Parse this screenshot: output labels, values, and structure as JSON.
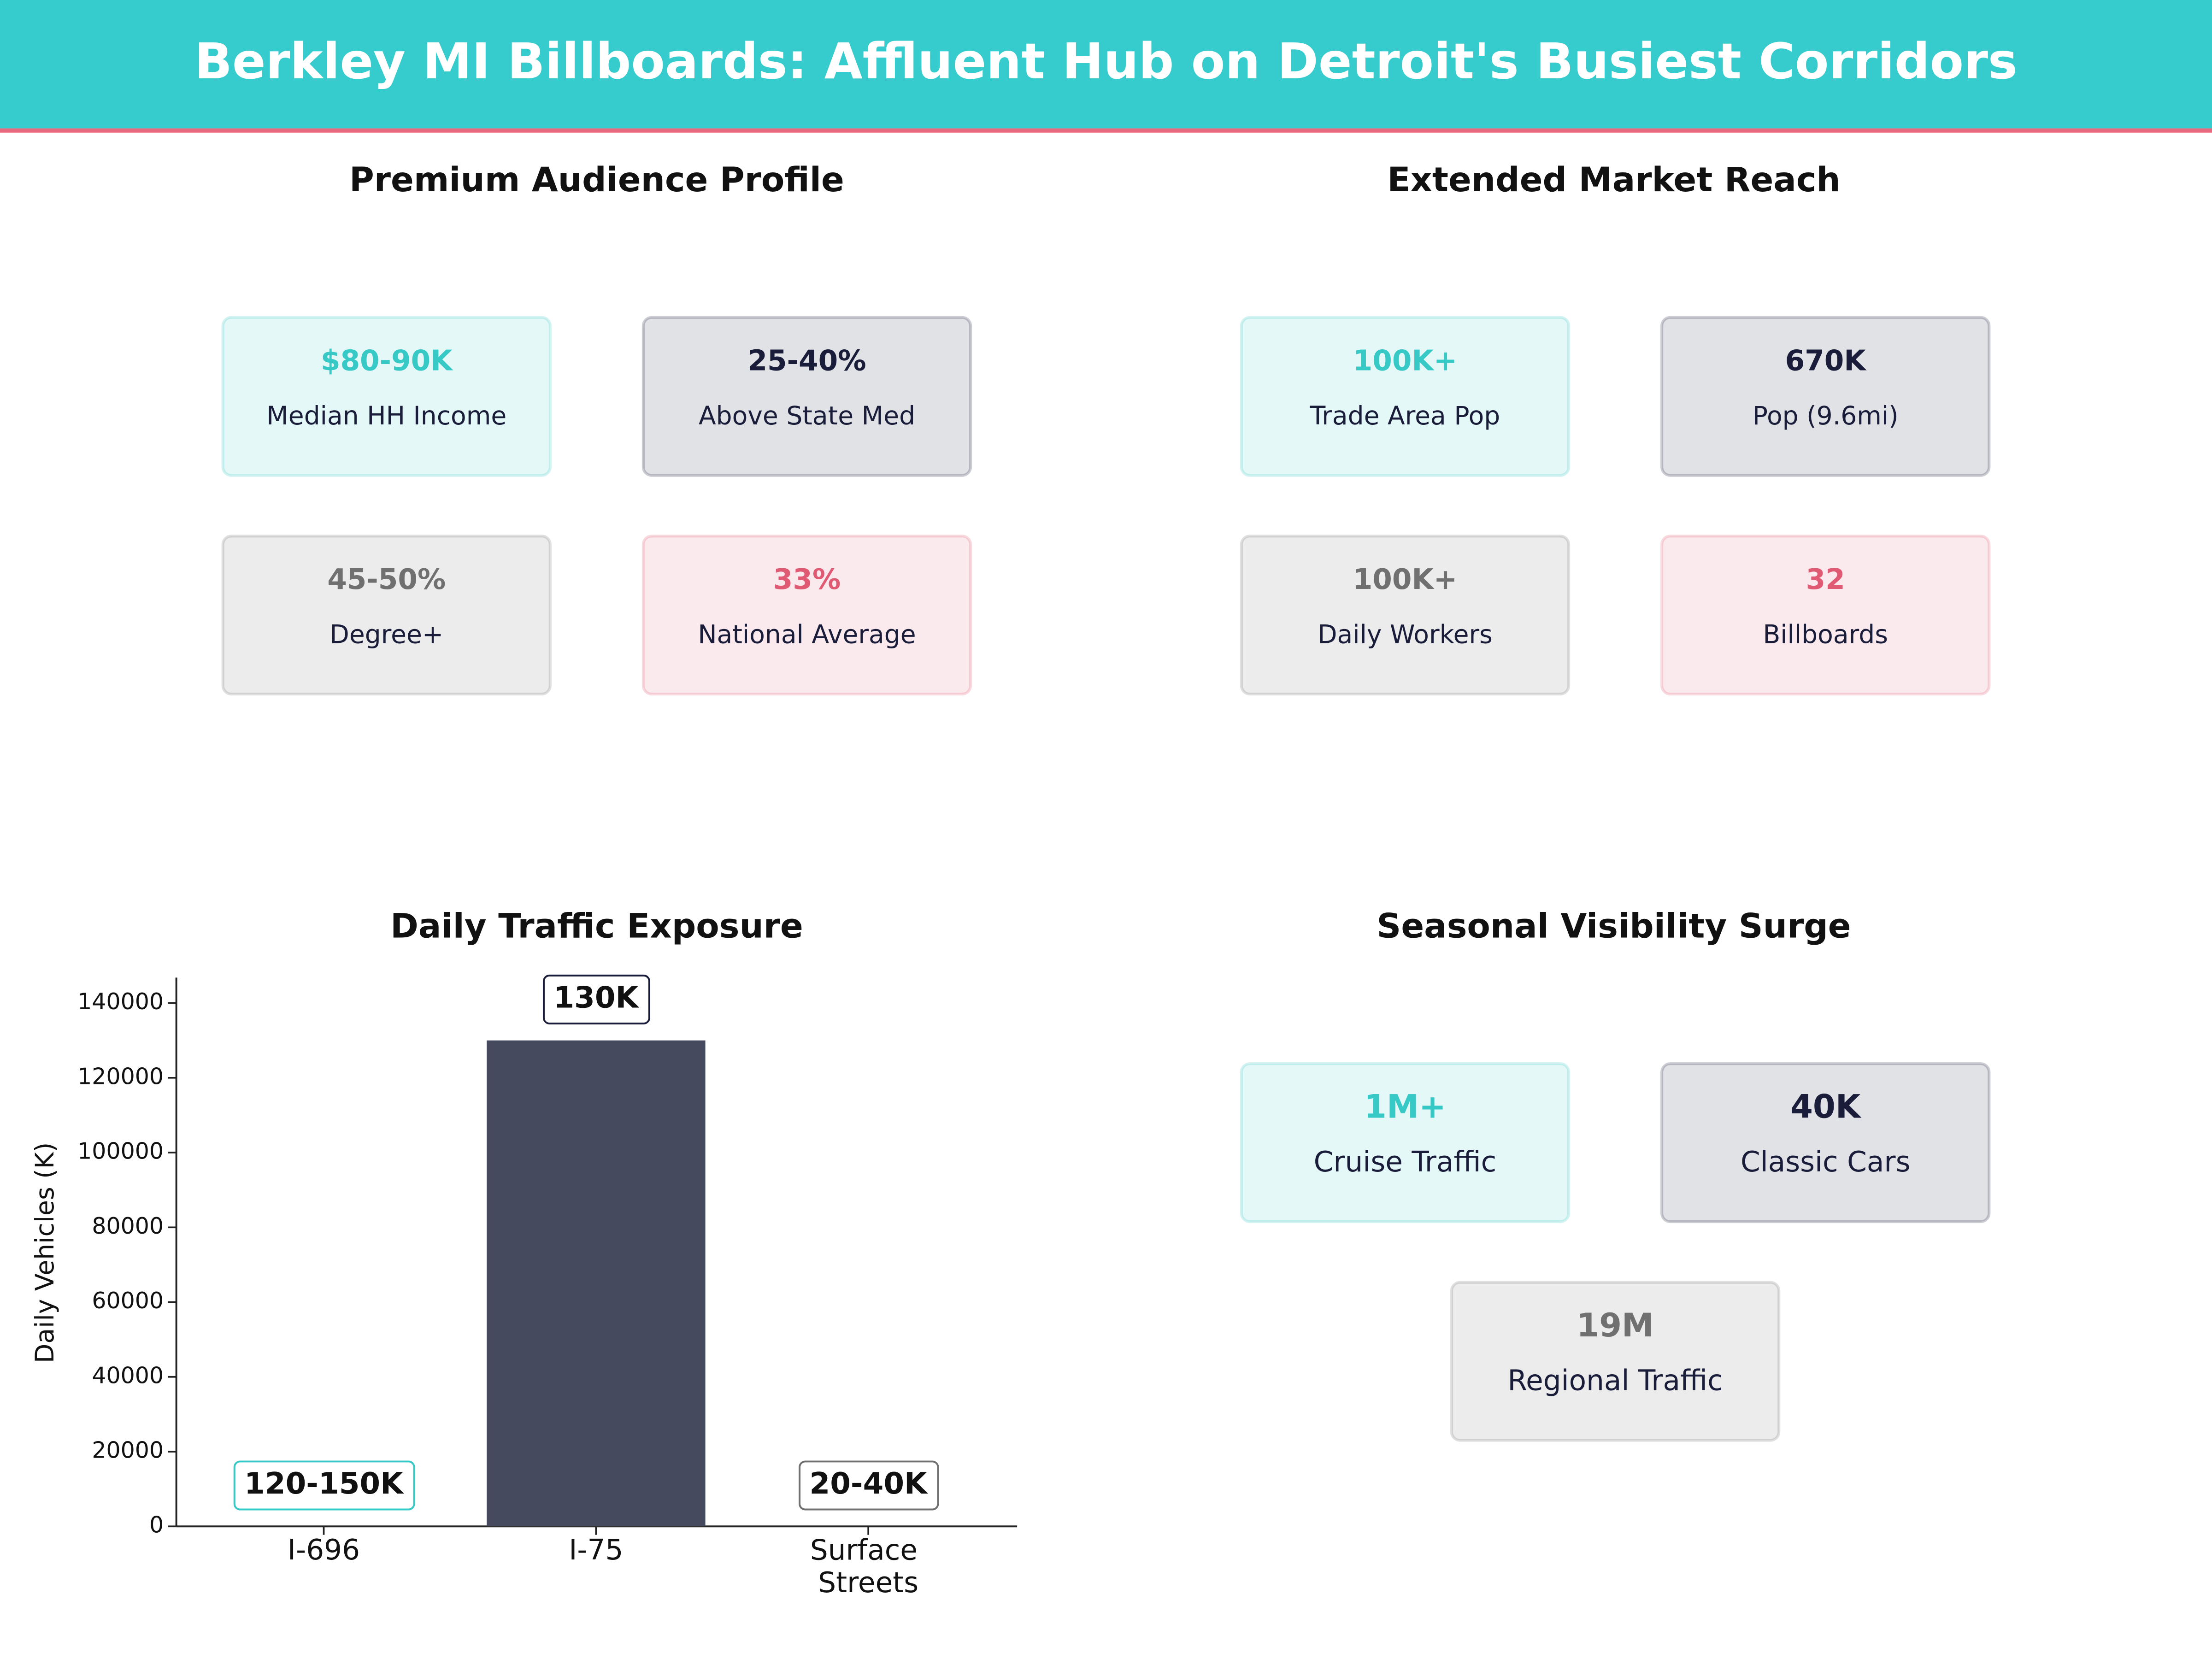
{
  "title": "Berkley MI Billboards: Affluent Hub on Detroit's Busiest Corridors",
  "panels": [
    {
      "title": "Premium Audience Profile",
      "cards": [
        {
          "value": "$80-90K",
          "label": "Median HH Income",
          "color": "#36c9c6"
        },
        {
          "value": "25-40%",
          "label": "Above State Med",
          "color": "#1a1d3a"
        },
        {
          "value": "45-50%",
          "label": "Degree+",
          "color": "#707070"
        },
        {
          "value": "33%",
          "label": "National Average",
          "color": "#e05a73"
        }
      ]
    },
    {
      "title": "Extended Market Reach",
      "cards": [
        {
          "value": "100K+",
          "label": "Trade Area Pop",
          "color": "#36c9c6"
        },
        {
          "value": "670K",
          "label": "Pop (9.6mi)",
          "color": "#1a1d3a"
        },
        {
          "value": "100K+",
          "label": "Daily Workers",
          "color": "#707070"
        },
        {
          "value": "32",
          "label": "Billboards",
          "color": "#e05a73"
        }
      ]
    },
    {
      "title": "Seasonal Visibility Surge",
      "cards": [
        {
          "value": "1M+",
          "label": "Cruise Traffic",
          "color": "#36c9c6"
        },
        {
          "value": "40K",
          "label": "Classic Cars",
          "color": "#1a1d3a"
        },
        {
          "value": "19M",
          "label": "Regional Traffic",
          "color": "#707070"
        }
      ]
    }
  ],
  "chart_data": {
    "type": "bar",
    "title": "Daily Traffic Exposure",
    "y_label": "Daily Vehicles (K)",
    "categories": [
      "I-696",
      "I-75",
      "Surface Streets"
    ],
    "values": [
      null,
      130000,
      null
    ],
    "value_labels": [
      "120-150K",
      "130K",
      "20-40K"
    ],
    "color": "#464a5f",
    "ylim": [
      0,
      146800
    ],
    "yticks": [
      0,
      20000,
      40000,
      60000,
      80000,
      100000,
      120000,
      140000
    ]
  }
}
